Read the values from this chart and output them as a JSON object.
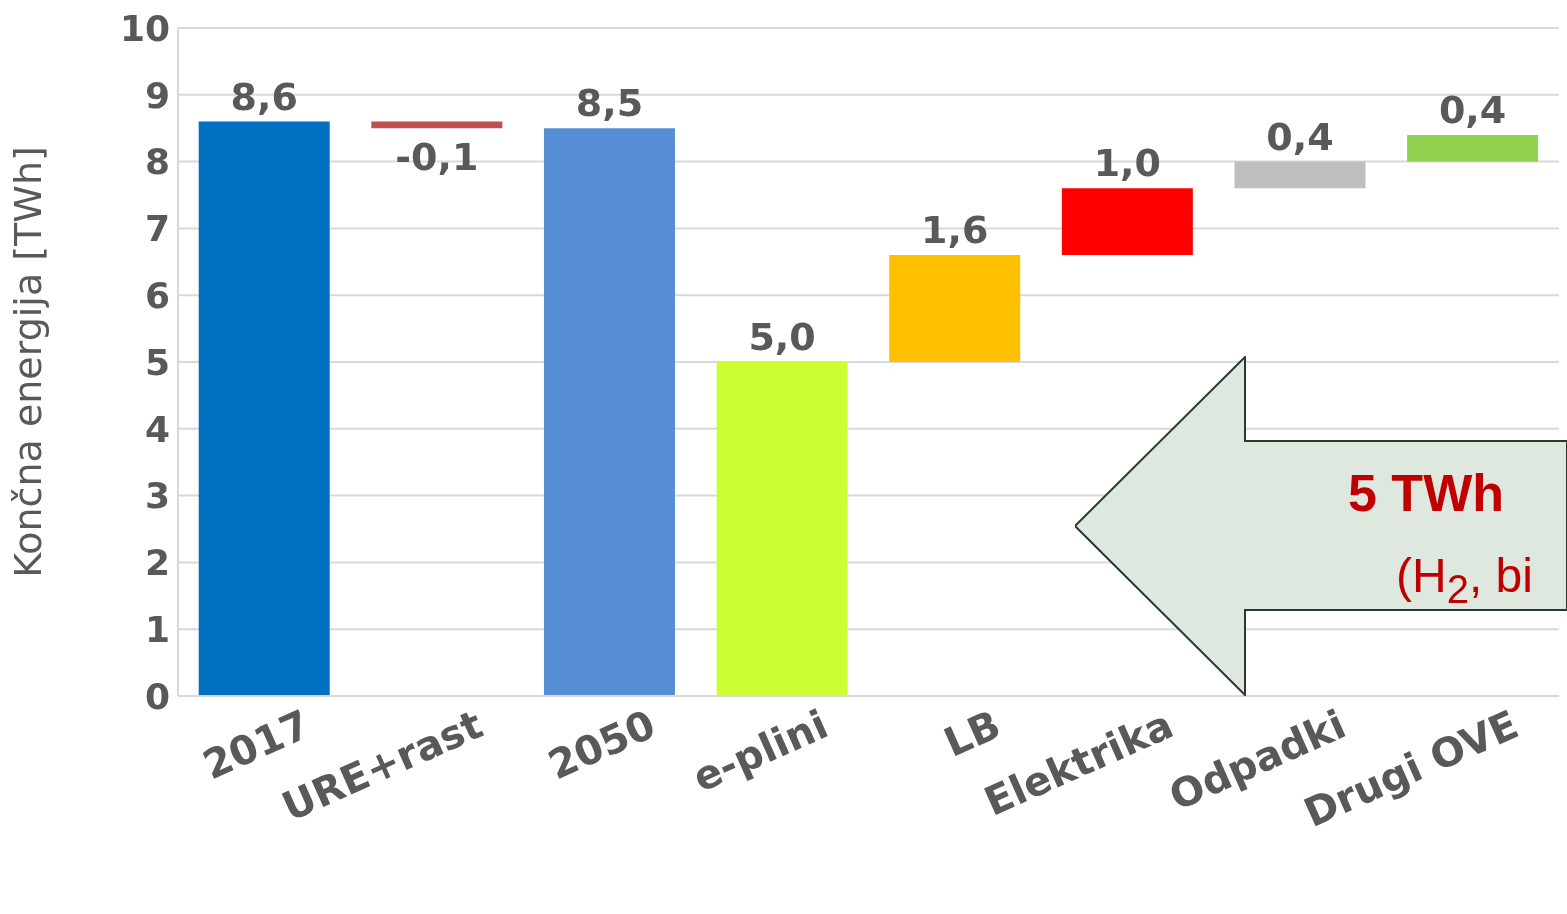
{
  "chart_data": {
    "type": "bar",
    "ylabel": "Končna energija [TWh]",
    "categories": [
      "2017",
      "URE+rast",
      "2050",
      "e-plini",
      "LB",
      "Elektrika",
      "Odpadki",
      "Drugi OVE"
    ],
    "values": [
      8.6,
      -0.1,
      8.5,
      5.0,
      1.6,
      1.0,
      0.4,
      0.4
    ],
    "base": [
      0,
      8.6,
      0,
      0,
      5.0,
      6.6,
      7.6,
      8.0
    ],
    "colors": [
      "#0070c0",
      "#c0504d",
      "#558ed5",
      "#ccff33",
      "#ffc000",
      "#ff0000",
      "#bfbfbf",
      "#92d050"
    ],
    "value_labels": [
      "8,6",
      "-0,1",
      "8,5",
      "5,0",
      "1,6",
      "1,0",
      "0,4",
      "0,4"
    ],
    "ylim": [
      0,
      10
    ],
    "yticks": [
      0,
      1,
      2,
      3,
      4,
      5,
      6,
      7,
      8,
      9,
      10
    ],
    "grid": "y",
    "annotations": [
      "5 TWh",
      "(H$_{2}$, bi"
    ]
  }
}
